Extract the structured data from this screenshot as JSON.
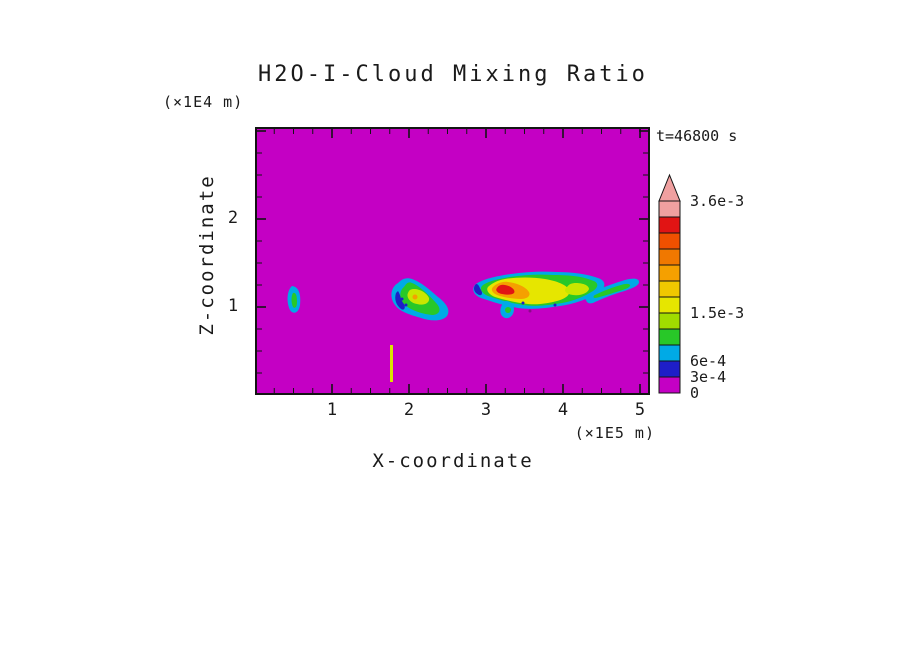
{
  "title": "H2O-I-Cloud Mixing Ratio",
  "time_label": "t=46800 s",
  "x_axis": {
    "label": "X-coordinate",
    "unit": "(×1E5 m)",
    "major_ticks": [
      1,
      2,
      3,
      4,
      5
    ],
    "minor_step": 0.25,
    "max": 5.12
  },
  "y_axis": {
    "label": "Z-coordinate",
    "unit": "(×1E4 m)",
    "major_ticks": [
      1,
      2
    ],
    "minor_step": 0.25,
    "max": 3.04
  },
  "colorbar": {
    "tick_labels": [
      {
        "text": "3.6e-3",
        "value": 0.0036
      },
      {
        "text": "1.5e-3",
        "value": 0.0015
      },
      {
        "text": "6e-4",
        "value": 0.0006
      },
      {
        "text": "3e-4",
        "value": 0.0003
      },
      {
        "text": "0",
        "value": 0
      }
    ],
    "segments_bottom_to_top": [
      {
        "from": 0,
        "color": "#C400C4"
      },
      {
        "from": 0.0003,
        "color": "#1E1EC8"
      },
      {
        "from": 0.0006,
        "color": "#00AAE6"
      },
      {
        "from": 0.0009,
        "color": "#28C828"
      },
      {
        "from": 0.0012,
        "color": "#A0DC00"
      },
      {
        "from": 0.0015,
        "color": "#E6E600"
      },
      {
        "from": 0.0018,
        "color": "#F0C800"
      },
      {
        "from": 0.0021,
        "color": "#F5A000"
      },
      {
        "from": 0.0024,
        "color": "#F07800"
      },
      {
        "from": 0.0027,
        "color": "#F05000"
      },
      {
        "from": 0.003,
        "color": "#E11414"
      },
      {
        "from": 0.0033,
        "color": "#F0A0A0"
      }
    ],
    "overflow_color": "#F0A0A0",
    "step": 0.0003
  },
  "chart_data": {
    "type": "heatmap",
    "title": "H2O-I-Cloud Mixing Ratio",
    "time_annotation": "t=46800 s",
    "xlabel": "X-coordinate",
    "x_unit": "×1E5 m",
    "ylabel": "Z-coordinate",
    "y_unit": "×1E4 m",
    "x_range": [
      0,
      5.12
    ],
    "y_range": [
      0,
      3.04
    ],
    "background_value": 0,
    "background_color": "#C400C4",
    "contour_levels": [
      0,
      0.0003,
      0.0006,
      0.0009,
      0.0012,
      0.0015,
      0.0018,
      0.0021,
      0.0024,
      0.0027,
      0.003,
      0.0033,
      0.0036
    ],
    "features": [
      {
        "name": "small cloud",
        "x_center": 0.52,
        "z_center": 1.08,
        "x_extent": [
          0.45,
          0.6
        ],
        "z_extent": [
          0.95,
          1.25
        ],
        "peak_value": 0.0009
      },
      {
        "name": "mid cloud",
        "x_center": 2.15,
        "z_center": 1.1,
        "x_extent": [
          1.8,
          2.5
        ],
        "z_extent": [
          0.87,
          1.33
        ],
        "peak_value": 0.0021
      },
      {
        "name": "large cloud",
        "x_center": 3.6,
        "z_center": 1.2,
        "x_extent": [
          2.86,
          4.55
        ],
        "z_extent": [
          0.91,
          1.42
        ],
        "peak_value": 0.0033
      },
      {
        "name": "right streak",
        "x_center": 4.65,
        "z_center": 1.2,
        "x_extent": [
          4.3,
          5.0
        ],
        "z_extent": [
          1.1,
          1.31
        ],
        "peak_value": 0.0012
      },
      {
        "name": "thin column",
        "x_center": 1.75,
        "z_center": 0.36,
        "x_extent": [
          1.73,
          1.78
        ],
        "z_extent": [
          0.15,
          0.57
        ],
        "peak_value": 0.0015
      }
    ]
  }
}
